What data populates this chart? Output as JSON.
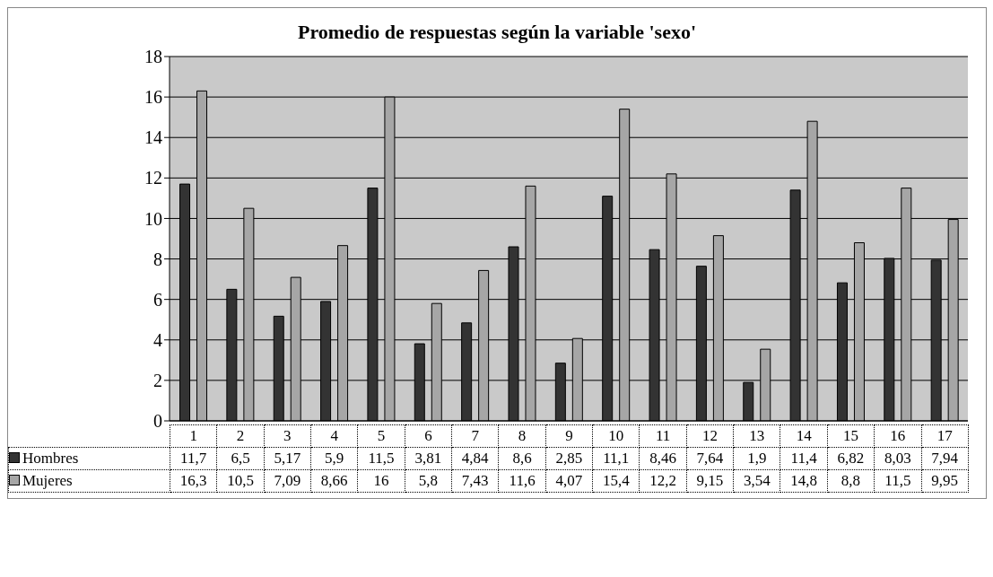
{
  "chart_data": {
    "type": "bar",
    "title": "Promedio de respuestas según la variable 'sexo'",
    "categories": [
      "1",
      "2",
      "3",
      "4",
      "5",
      "6",
      "7",
      "8",
      "9",
      "10",
      "11",
      "12",
      "13",
      "14",
      "15",
      "16",
      "17"
    ],
    "series": [
      {
        "name": "Hombres",
        "color": "#333333",
        "values": [
          11.7,
          6.5,
          5.17,
          5.9,
          11.5,
          3.81,
          4.84,
          8.6,
          2.85,
          11.1,
          8.46,
          7.64,
          1.9,
          11.4,
          6.82,
          8.03,
          7.94
        ],
        "value_labels": [
          "11,7",
          "6,5",
          "5,17",
          "5,9",
          "11,5",
          "3,81",
          "4,84",
          "8,6",
          "2,85",
          "11,1",
          "8,46",
          "7,64",
          "1,9",
          "11,4",
          "6,82",
          "8,03",
          "7,94"
        ]
      },
      {
        "name": "Mujeres",
        "color": "#a6a6a6",
        "values": [
          16.3,
          10.5,
          7.09,
          8.66,
          16,
          5.8,
          7.43,
          11.6,
          4.07,
          15.4,
          12.2,
          9.15,
          3.54,
          14.8,
          8.8,
          11.5,
          9.95
        ],
        "value_labels": [
          "16,3",
          "10,5",
          "7,09",
          "8,66",
          "16",
          "5,8",
          "7,43",
          "11,6",
          "4,07",
          "15,4",
          "12,2",
          "9,15",
          "3,54",
          "14,8",
          "8,8",
          "11,5",
          "9,95"
        ]
      }
    ],
    "ylim": [
      0,
      18
    ],
    "yticks": [
      0,
      2,
      4,
      6,
      8,
      10,
      12,
      14,
      16,
      18
    ],
    "grid": "y",
    "legend": "bottom"
  }
}
